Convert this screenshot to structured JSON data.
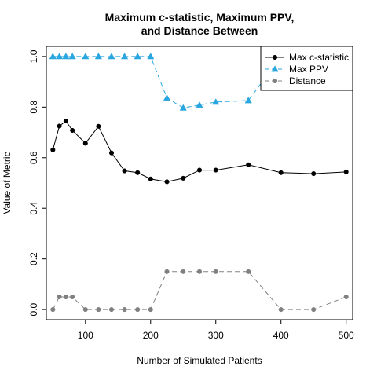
{
  "chart_data": {
    "type": "line",
    "title_lines": [
      "Maximum c-statistic, Maximum PPV,",
      "and Distance Between"
    ],
    "xlabel": "Number of Simulated Patients",
    "ylabel": "Value of Metric",
    "xlim": [
      40,
      510
    ],
    "ylim": [
      -0.04,
      1.04
    ],
    "xticks": [
      100,
      200,
      300,
      400,
      500
    ],
    "yticks": [
      0.0,
      0.2,
      0.4,
      0.6,
      0.8,
      1.0
    ],
    "ytick_labels": [
      "0.0",
      "0.2",
      "0.4",
      "0.6",
      "0.8",
      "1.0"
    ],
    "grid": false,
    "legend_position": "top-right",
    "series": [
      {
        "name": "Max c-statistic",
        "color": "#000000",
        "marker": "circle",
        "line": "solid",
        "x": [
          50,
          60,
          70,
          80,
          100,
          120,
          140,
          160,
          180,
          200,
          225,
          250,
          275,
          300,
          350,
          400,
          450,
          500
        ],
        "y": [
          0.631,
          0.725,
          0.745,
          0.708,
          0.657,
          0.724,
          0.619,
          0.548,
          0.541,
          0.516,
          0.505,
          0.519,
          0.551,
          0.551,
          0.572,
          0.541,
          0.537,
          0.544
        ]
      },
      {
        "name": "Max PPV",
        "color": "#29a6e0",
        "marker": "triangle",
        "line": "dashed",
        "x": [
          50,
          60,
          70,
          80,
          100,
          120,
          140,
          160,
          180,
          200,
          225,
          250,
          275,
          300,
          350,
          400,
          450,
          500
        ],
        "y": [
          1.0,
          1.0,
          1.0,
          1.0,
          1.0,
          1.0,
          1.0,
          1.0,
          1.0,
          1.0,
          0.836,
          0.797,
          0.808,
          0.82,
          0.826,
          1.0,
          1.0,
          1.0
        ]
      },
      {
        "name": "Distance",
        "color": "#808080",
        "marker": "circle",
        "line": "dashed",
        "x": [
          50,
          60,
          70,
          80,
          100,
          120,
          140,
          160,
          180,
          200,
          225,
          250,
          275,
          300,
          350,
          400,
          450,
          500
        ],
        "y": [
          0.0,
          0.05,
          0.05,
          0.05,
          0.0,
          0.0,
          0.0,
          0.0,
          0.0,
          0.0,
          0.15,
          0.15,
          0.15,
          0.15,
          0.15,
          0.0,
          0.0,
          0.05
        ]
      }
    ]
  }
}
